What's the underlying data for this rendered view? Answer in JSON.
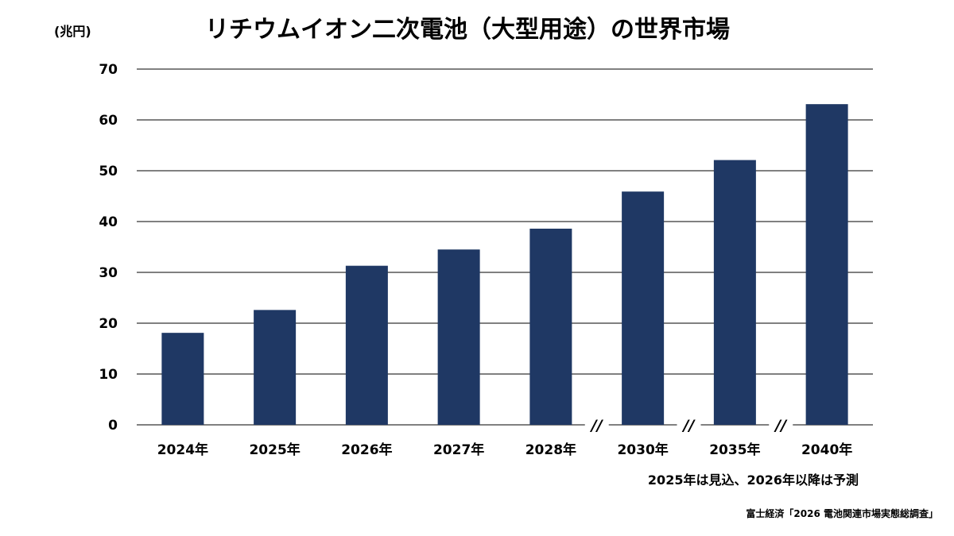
{
  "chart_data": {
    "type": "bar",
    "title": "リチウムイオン二次電池（大型用途）の世界市場",
    "unit_label": "(兆円)",
    "categories": [
      "2024年",
      "2025年",
      "2026年",
      "2027年",
      "2028年",
      "2030年",
      "2035年",
      "2040年"
    ],
    "values": [
      18.1,
      22.6,
      31.3,
      34.5,
      38.6,
      45.9,
      52.1,
      63.1
    ],
    "ylim": [
      0,
      70
    ],
    "yticks": [
      0,
      10,
      20,
      30,
      40,
      50,
      60,
      70
    ],
    "grid": true,
    "axis_breaks_after": [
      "2028年",
      "2030年",
      "2035年"
    ],
    "axis_break_mark": "//",
    "bar_color": "#1f3864",
    "note": "2025年は見込、2026年以降は予測",
    "source": "富士経済「2026 電池関連市場実態総調査」"
  }
}
